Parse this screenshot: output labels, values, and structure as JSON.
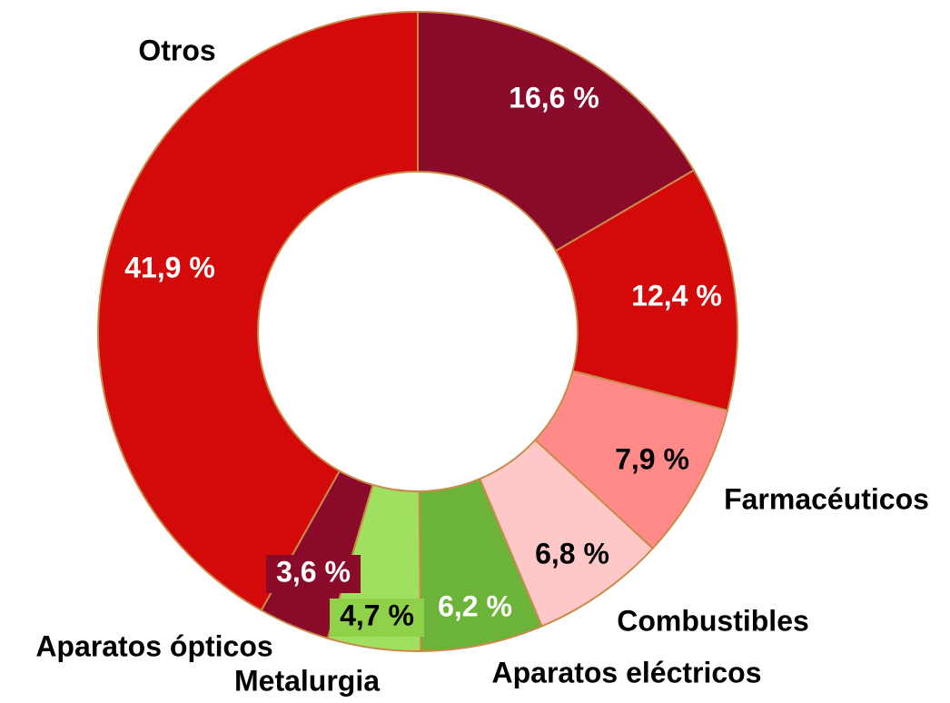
{
  "chart_data": {
    "type": "donut",
    "categories": [
      null,
      null,
      "Farmacéuticos",
      "Combustibles",
      "Aparatos eléctricos",
      "Metalurgia",
      "Aparatos ópticos",
      "Otros"
    ],
    "values": [
      16.6,
      12.4,
      7.9,
      6.8,
      6.2,
      4.7,
      3.6,
      41.9
    ],
    "value_labels": [
      "16,6 %",
      "12,4 %",
      "7,9 %",
      "6,8 %",
      "6,2 %",
      "4,7 %",
      "3,6 %",
      "41,9 %"
    ],
    "colors": [
      "#8a0a2a",
      "#d40a0a",
      "#ff8a88",
      "#ffc8c8",
      "#6cb33a",
      "#a0e060",
      "#8a0a2a",
      "#d40a0a"
    ]
  }
}
